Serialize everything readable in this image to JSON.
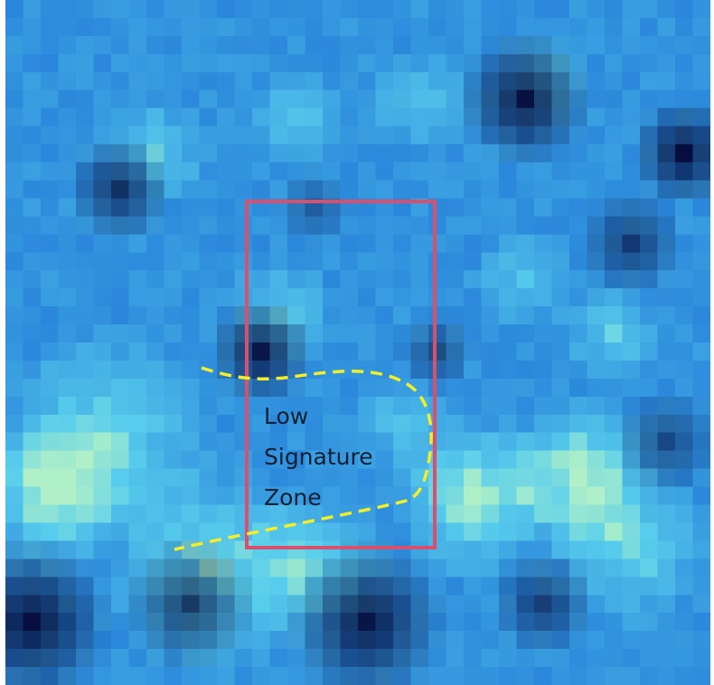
{
  "annotation": {
    "label_lines": [
      "Low",
      "Signature",
      "Zone"
    ],
    "box_color": "#d9506e",
    "boundary_color": "#f2ee2a",
    "label_color": "#0b1f33"
  }
}
